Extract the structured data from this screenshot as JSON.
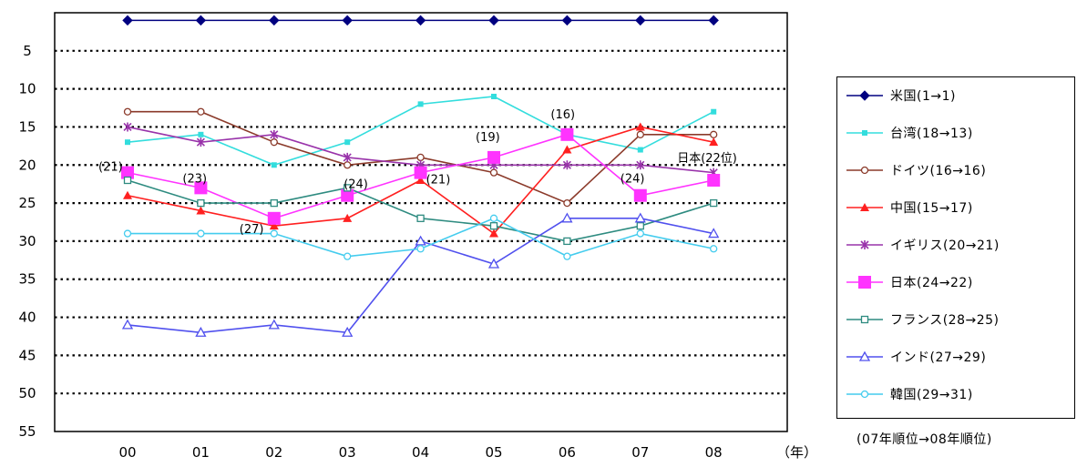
{
  "chart_data": {
    "type": "line",
    "x_unit": "（年）",
    "categories": [
      "00",
      "01",
      "02",
      "03",
      "04",
      "05",
      "06",
      "07",
      "08"
    ],
    "ylim": [
      55,
      0
    ],
    "y_inverted": true,
    "yticks": [
      5,
      10,
      15,
      20,
      25,
      30,
      35,
      40,
      45,
      50,
      55
    ],
    "grid": "horizontal-dotted",
    "legend_position": "right",
    "legend_note": "(07年順位→08年順位)",
    "series": [
      {
        "name": "米国(1→1)",
        "color": "#000080",
        "marker": "diamond-filled",
        "values": [
          1,
          1,
          1,
          1,
          1,
          1,
          1,
          1,
          1
        ]
      },
      {
        "name": "台湾(18→13)",
        "color": "#33dddd",
        "marker": "square-filled-small",
        "values": [
          17,
          16,
          20,
          17,
          12,
          11,
          16,
          18,
          13
        ]
      },
      {
        "name": "ドイツ(16→16)",
        "color": "#8b3a2a",
        "marker": "circle-open",
        "values": [
          13,
          13,
          17,
          20,
          19,
          21,
          25,
          16,
          16
        ]
      },
      {
        "name": "中国(15→17)",
        "color": "#ff2020",
        "marker": "triangle-filled",
        "values": [
          24,
          26,
          28,
          27,
          22,
          29,
          18,
          15,
          17
        ]
      },
      {
        "name": "イギリス(20→21)",
        "color": "#9933aa",
        "marker": "star",
        "values": [
          15,
          17,
          16,
          19,
          20,
          20,
          20,
          20,
          21
        ]
      },
      {
        "name": "日本(24→22)",
        "color": "#ff33ff",
        "marker": "square-filled-large",
        "values": [
          21,
          23,
          27,
          24,
          21,
          19,
          16,
          24,
          22
        ]
      },
      {
        "name": "フランス(28→25)",
        "color": "#2e8b80",
        "marker": "square-open",
        "values": [
          22,
          25,
          25,
          23,
          27,
          28,
          30,
          28,
          25
        ]
      },
      {
        "name": "インド(27→29)",
        "color": "#5050ee",
        "marker": "triangle-open",
        "values": [
          41,
          42,
          41,
          42,
          30,
          33,
          27,
          27,
          29
        ]
      },
      {
        "name": "韓国(29→31)",
        "color": "#44ccee",
        "marker": "circle-open-light",
        "values": [
          29,
          29,
          29,
          32,
          31,
          27,
          32,
          29,
          31
        ]
      }
    ],
    "annotations": [
      {
        "text": "(21)",
        "x": "00",
        "y": 21
      },
      {
        "text": "(23)",
        "x": "01",
        "y": 23
      },
      {
        "text": "(27)",
        "x": "02",
        "y": 27
      },
      {
        "text": "(24)",
        "x": "03",
        "y": 24
      },
      {
        "text": "(21)",
        "x": "04",
        "y": 21
      },
      {
        "text": "(19)",
        "x": "05",
        "y": 19
      },
      {
        "text": "(16)",
        "x": "06",
        "y": 16
      },
      {
        "text": "(24)",
        "x": "07",
        "y": 24
      },
      {
        "text": "日本(22位)",
        "x": "08",
        "y": 22
      }
    ]
  }
}
